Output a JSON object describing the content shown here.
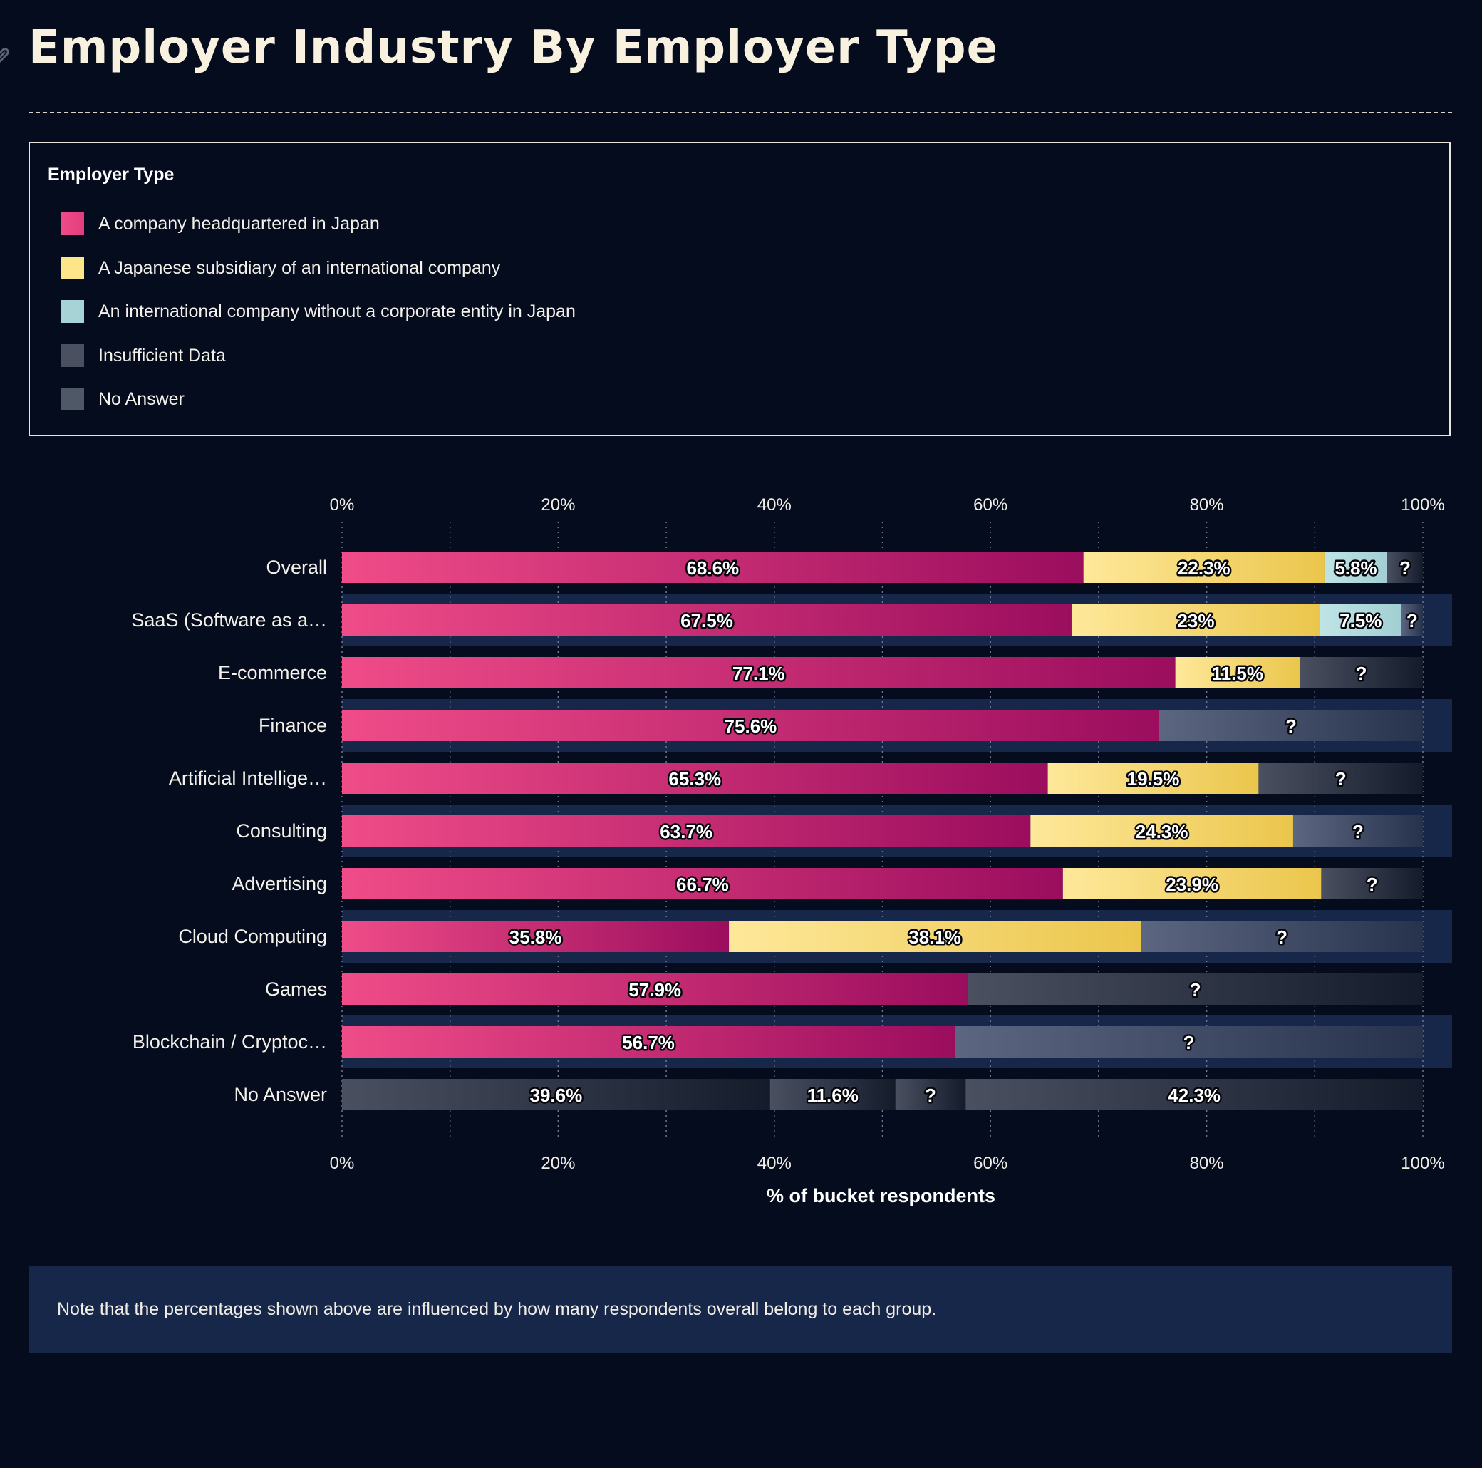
{
  "page": {
    "title": "Employer Industry By Employer Type",
    "note": "Note that the percentages shown above are influenced by how many respondents overall belong to each group."
  },
  "legend": {
    "title": "Employer Type",
    "items": [
      {
        "key": "japan_hq",
        "label": "A company headquartered in Japan",
        "color": "#ea4c86"
      },
      {
        "key": "japanese_subsidiary",
        "label": "A Japanese subsidiary of an international company",
        "color": "#fde68a"
      },
      {
        "key": "international_no_entity",
        "label": "An international company without a corporate entity in Japan",
        "color": "#a7d3d6"
      },
      {
        "key": "insufficient",
        "label": "Insufficient Data",
        "color": "#4a5060"
      },
      {
        "key": "no_answer",
        "label": "No Answer",
        "color": "#4f5867"
      }
    ]
  },
  "chart_data": {
    "type": "bar",
    "orientation": "horizontal",
    "stacked": true,
    "xlabel": "% of bucket respondents",
    "xlim": [
      0,
      100
    ],
    "x_ticks": [
      "0%",
      "20%",
      "40%",
      "60%",
      "80%",
      "100%"
    ],
    "grid": true,
    "categories": [
      "Overall",
      "SaaS (Software as a…",
      "E-commerce",
      "Finance",
      "Artificial Intellige…",
      "Consulting",
      "Advertising",
      "Cloud Computing",
      "Games",
      "Blockchain / Cryptoc…",
      "No Answer"
    ],
    "rows": [
      {
        "category": "Overall",
        "segments": [
          {
            "series": "japan_hq",
            "value": 68.6,
            "label": "68.6%"
          },
          {
            "series": "japanese_subsidiary",
            "value": 22.3,
            "label": "22.3%"
          },
          {
            "series": "international_no_entity",
            "value": 5.8,
            "label": "5.8%"
          },
          {
            "series": "insufficient",
            "value": 3.3,
            "label": "?"
          }
        ]
      },
      {
        "category": "SaaS (Software as a…",
        "segments": [
          {
            "series": "japan_hq",
            "value": 67.5,
            "label": "67.5%"
          },
          {
            "series": "japanese_subsidiary",
            "value": 23,
            "label": "23%"
          },
          {
            "series": "international_no_entity",
            "value": 7.5,
            "label": "7.5%"
          },
          {
            "series": "insufficient",
            "value": 2,
            "label": "?"
          }
        ]
      },
      {
        "category": "E-commerce",
        "segments": [
          {
            "series": "japan_hq",
            "value": 77.1,
            "label": "77.1%"
          },
          {
            "series": "japanese_subsidiary",
            "value": 11.5,
            "label": "11.5%"
          },
          {
            "series": "insufficient",
            "value": 11.4,
            "label": "?"
          }
        ]
      },
      {
        "category": "Finance",
        "segments": [
          {
            "series": "japan_hq",
            "value": 75.6,
            "label": "75.6%"
          },
          {
            "series": "insufficient",
            "value": 24.4,
            "label": "?"
          }
        ]
      },
      {
        "category": "Artificial Intellige…",
        "segments": [
          {
            "series": "japan_hq",
            "value": 65.3,
            "label": "65.3%"
          },
          {
            "series": "japanese_subsidiary",
            "value": 19.5,
            "label": "19.5%"
          },
          {
            "series": "insufficient",
            "value": 15.2,
            "label": "?"
          }
        ]
      },
      {
        "category": "Consulting",
        "segments": [
          {
            "series": "japan_hq",
            "value": 63.7,
            "label": "63.7%"
          },
          {
            "series": "japanese_subsidiary",
            "value": 24.3,
            "label": "24.3%"
          },
          {
            "series": "insufficient",
            "value": 12,
            "label": "?"
          }
        ]
      },
      {
        "category": "Advertising",
        "segments": [
          {
            "series": "japan_hq",
            "value": 66.7,
            "label": "66.7%"
          },
          {
            "series": "japanese_subsidiary",
            "value": 23.9,
            "label": "23.9%"
          },
          {
            "series": "insufficient",
            "value": 9.4,
            "label": "?"
          }
        ]
      },
      {
        "category": "Cloud Computing",
        "segments": [
          {
            "series": "japan_hq",
            "value": 35.8,
            "label": "35.8%"
          },
          {
            "series": "japanese_subsidiary",
            "value": 38.1,
            "label": "38.1%"
          },
          {
            "series": "insufficient",
            "value": 26.1,
            "label": "?"
          }
        ]
      },
      {
        "category": "Games",
        "segments": [
          {
            "series": "japan_hq",
            "value": 57.9,
            "label": "57.9%"
          },
          {
            "series": "insufficient",
            "value": 42.1,
            "label": "?"
          }
        ]
      },
      {
        "category": "Blockchain / Cryptoc…",
        "segments": [
          {
            "series": "japan_hq",
            "value": 56.7,
            "label": "56.7%"
          },
          {
            "series": "insufficient",
            "value": 43.3,
            "label": "?"
          }
        ]
      },
      {
        "category": "No Answer",
        "segments": [
          {
            "series": "no_answer",
            "value": 39.6,
            "label": "39.6%"
          },
          {
            "series": "no_answer",
            "value": 11.6,
            "label": "11.6%"
          },
          {
            "series": "insufficient",
            "value": 6.5,
            "label": "?"
          },
          {
            "series": "no_answer",
            "value": 42.3,
            "label": "42.3%"
          }
        ]
      }
    ]
  }
}
